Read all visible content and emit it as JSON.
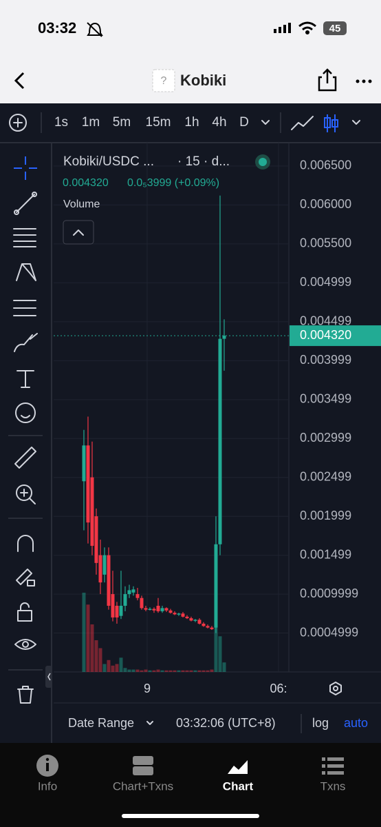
{
  "status_bar": {
    "time": "03:32",
    "battery": "45"
  },
  "header": {
    "token_icon": "?",
    "title": "Kobiki"
  },
  "toolbar": {
    "intervals": [
      "1s",
      "1m",
      "5m",
      "15m",
      "1h",
      "4h",
      "D"
    ],
    "active_interval": 3
  },
  "chart_data": {
    "type": "candlestick",
    "title": "Kobiki/USDC ...",
    "interval_label": "· 15 · d...",
    "legend_price": "0.004320",
    "legend_change": "0.0₅3999 (+0.09%)",
    "volume_label": "Volume",
    "open": [
      0.00245,
      0.00291,
      0.0025,
      0.002,
      0.0015,
      0.00125,
      0.0015,
      0.001,
      0.00085,
      0.00072,
      0.00085,
      0.001,
      0.00102,
      0.001,
      0.00095,
      0.00082,
      0.0008,
      0.00081,
      0.00085,
      0.00078,
      0.00082,
      0.00079,
      0.00076,
      0.00074,
      0.00075,
      0.00071,
      0.00069,
      0.00066,
      0.00067,
      0.00062,
      0.00059,
      0.00057,
      0.00057,
      0.00164,
      0.00428
    ],
    "high": [
      0.00311,
      0.00328,
      0.00296,
      0.0021,
      0.0017,
      0.0016,
      0.0016,
      0.0013,
      0.0009,
      0.0013,
      0.0011,
      0.00112,
      0.0011,
      0.00108,
      0.00098,
      0.00085,
      0.00083,
      0.00083,
      0.00095,
      0.00085,
      0.00083,
      0.00081,
      0.00078,
      0.00076,
      0.00077,
      0.00073,
      0.00071,
      0.00068,
      0.00069,
      0.00064,
      0.00061,
      0.00059,
      0.002,
      0.00612,
      0.00453
    ],
    "low": [
      0.00182,
      0.00165,
      0.0015,
      0.00125,
      0.001,
      0.00115,
      0.0008,
      0.00065,
      0.00062,
      0.00068,
      0.00078,
      0.00095,
      0.00098,
      0.00092,
      0.0008,
      0.00078,
      0.00079,
      0.00076,
      0.00076,
      0.00076,
      0.00077,
      0.00075,
      0.00073,
      0.00072,
      0.0007,
      0.00068,
      0.00065,
      0.00064,
      0.00061,
      0.00058,
      0.00056,
      0.00054,
      0.0005,
      0.0015,
      0.00387
    ],
    "close": [
      0.00291,
      0.00192,
      0.00162,
      0.0014,
      0.00115,
      0.0015,
      0.00085,
      0.0007,
      0.0007,
      0.00085,
      0.001,
      0.00105,
      0.00106,
      0.00095,
      0.00082,
      0.0008,
      0.00081,
      0.00079,
      0.00078,
      0.00082,
      0.00079,
      0.00076,
      0.00074,
      0.00075,
      0.00071,
      0.00069,
      0.00066,
      0.00067,
      0.00062,
      0.00059,
      0.00057,
      0.00055,
      0.00164,
      0.00428,
      0.00432
    ],
    "volume": [
      100,
      85,
      60,
      40,
      30,
      10,
      15,
      8,
      10,
      18,
      5,
      3,
      3,
      3,
      2,
      3,
      2,
      2,
      3,
      2,
      2,
      2,
      2,
      2,
      2,
      2,
      2,
      2,
      2,
      2,
      2,
      3,
      100,
      45,
      12
    ],
    "up_color": "#22ab94",
    "down_color": "#f23645",
    "ylim": [
      0,
      0.0068
    ],
    "yticks": [
      0.0004999,
      0.0009999,
      0.001499,
      0.001999,
      0.002499,
      0.002999,
      0.003499,
      0.003999,
      0.004499,
      0.004999,
      {
        "value": 0.0055,
        "label": "0.005500"
      },
      {
        "value": 0.006,
        "label": "0.006000"
      },
      {
        "value": 0.0065,
        "label": "0.006500"
      }
    ],
    "xlim": [
      -7.33,
      49.67
    ],
    "xticks": [
      {
        "value": 15.33,
        "label": "9"
      },
      {
        "value": 47.17,
        "label": "06:"
      }
    ],
    "last_price": {
      "value": 0.00432,
      "label": "0.004320"
    },
    "grid": true,
    "log_scale": false
  },
  "bottom_bar": {
    "date_range": "Date Range",
    "clock": "03:32:06 (UTC+8)",
    "log": "log",
    "auto": "auto"
  },
  "tabs": [
    "Info",
    "Chart+Txns",
    "Chart",
    "Txns"
  ],
  "active_tab": 2
}
